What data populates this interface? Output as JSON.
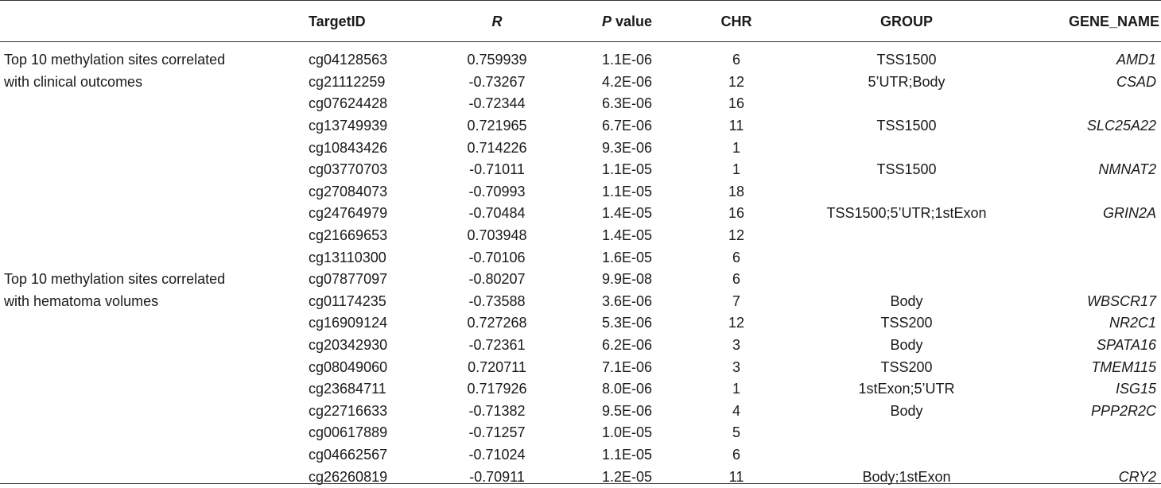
{
  "headers": {
    "target_id": "TargetID",
    "r": "R",
    "p_value_p": "P",
    "p_value_rest": " value",
    "chr": "CHR",
    "group": "GROUP",
    "gene_name": "GENE_NAME"
  },
  "group_labels": [
    {
      "line1": "Top 10 methylation sites correlated",
      "line2": "with clinical outcomes"
    },
    {
      "line1": "Top 10 methylation sites correlated",
      "line2": "with hematoma volumes"
    }
  ],
  "rows": [
    {
      "target_id": "cg04128563",
      "r": "0.759939",
      "p": "1.1E-06",
      "chr": "6",
      "group": "TSS1500",
      "gene": "AMD1"
    },
    {
      "target_id": "cg21112259",
      "r": "-0.73267",
      "p": "4.2E-06",
      "chr": "12",
      "group": "5’UTR;Body",
      "gene": "CSAD"
    },
    {
      "target_id": "cg07624428",
      "r": "-0.72344",
      "p": "6.3E-06",
      "chr": "16",
      "group": "",
      "gene": ""
    },
    {
      "target_id": "cg13749939",
      "r": "0.721965",
      "p": "6.7E-06",
      "chr": "11",
      "group": "TSS1500",
      "gene": "SLC25A22"
    },
    {
      "target_id": "cg10843426",
      "r": "0.714226",
      "p": "9.3E-06",
      "chr": "1",
      "group": "",
      "gene": ""
    },
    {
      "target_id": "cg03770703",
      "r": "-0.71011",
      "p": "1.1E-05",
      "chr": "1",
      "group": "TSS1500",
      "gene": "NMNAT2"
    },
    {
      "target_id": "cg27084073",
      "r": "-0.70993",
      "p": "1.1E-05",
      "chr": "18",
      "group": "",
      "gene": ""
    },
    {
      "target_id": "cg24764979",
      "r": "-0.70484",
      "p": "1.4E-05",
      "chr": "16",
      "group": "TSS1500;5’UTR;1stExon",
      "gene": "GRIN2A"
    },
    {
      "target_id": "cg21669653",
      "r": "0.703948",
      "p": "1.4E-05",
      "chr": "12",
      "group": "",
      "gene": ""
    },
    {
      "target_id": "cg13110300",
      "r": "-0.70106",
      "p": "1.6E-05",
      "chr": "6",
      "group": "",
      "gene": ""
    },
    {
      "target_id": "cg07877097",
      "r": "-0.80207",
      "p": "9.9E-08",
      "chr": "6",
      "group": "",
      "gene": ""
    },
    {
      "target_id": "cg01174235",
      "r": "-0.73588",
      "p": "3.6E-06",
      "chr": "7",
      "group": "Body",
      "gene": "WBSCR17"
    },
    {
      "target_id": "cg16909124",
      "r": "0.727268",
      "p": "5.3E-06",
      "chr": "12",
      "group": "TSS200",
      "gene": "NR2C1"
    },
    {
      "target_id": "cg20342930",
      "r": "-0.72361",
      "p": "6.2E-06",
      "chr": "3",
      "group": "Body",
      "gene": "SPATA16"
    },
    {
      "target_id": "cg08049060",
      "r": "0.720711",
      "p": "7.1E-06",
      "chr": "3",
      "group": "TSS200",
      "gene": "TMEM115"
    },
    {
      "target_id": "cg23684711",
      "r": "0.717926",
      "p": "8.0E-06",
      "chr": "1",
      "group": "1stExon;5’UTR",
      "gene": "ISG15"
    },
    {
      "target_id": "cg22716633",
      "r": "-0.71382",
      "p": "9.5E-06",
      "chr": "4",
      "group": "Body",
      "gene": "PPP2R2C"
    },
    {
      "target_id": "cg00617889",
      "r": "-0.71257",
      "p": "1.0E-05",
      "chr": "5",
      "group": "",
      "gene": ""
    },
    {
      "target_id": "cg04662567",
      "r": "-0.71024",
      "p": "1.1E-05",
      "chr": "6",
      "group": "",
      "gene": ""
    },
    {
      "target_id": "cg26260819",
      "r": "-0.70911",
      "p": "1.2E-05",
      "chr": "11",
      "group": "Body;1stExon",
      "gene": "CRY2"
    }
  ]
}
